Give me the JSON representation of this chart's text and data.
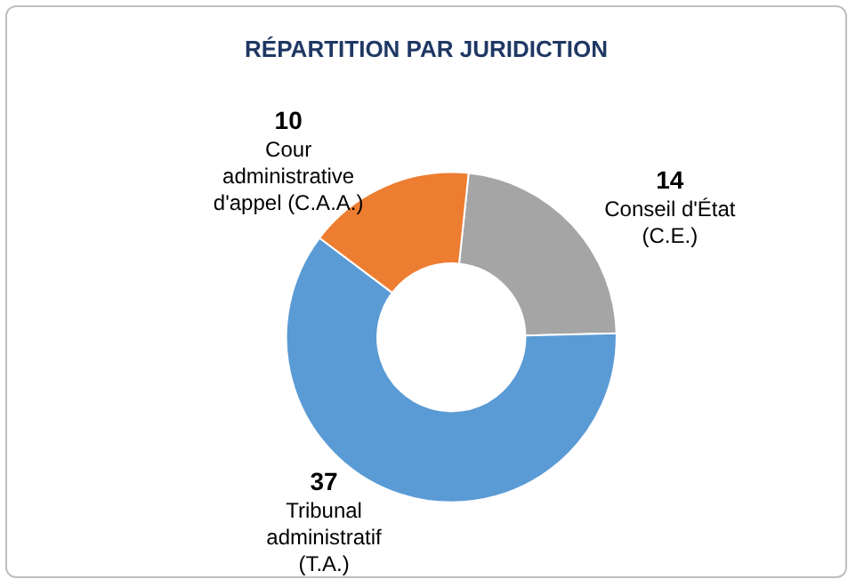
{
  "chart_data": {
    "type": "donut",
    "title": "RÉPARTITION PAR JURIDICTION",
    "categories": [
      "Conseil d'État (C.E.)",
      "Tribunal administratif (T.A.)",
      "Cour administrative d'appel (C.A.A.)"
    ],
    "values": [
      14,
      37,
      10
    ],
    "colors": [
      "#a5a5a5",
      "#5b9bd5",
      "#ed7d31"
    ],
    "data_labels": true,
    "legend": false
  }
}
